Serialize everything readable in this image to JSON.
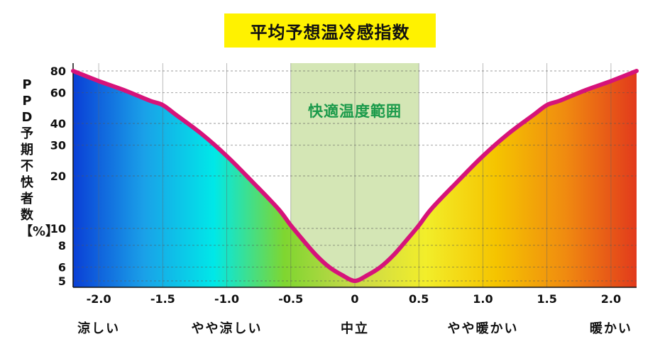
{
  "chart_data": {
    "type": "area",
    "title": "平均予想温冷感指数",
    "ylabel": "PPD予期不快者数【%】",
    "xlabel": "",
    "xlim": [
      -2.2,
      2.2
    ],
    "ylim": [
      5,
      80
    ],
    "y_scale": "log",
    "x_ticks": [
      "-2.0",
      "-1.5",
      "-1.0",
      "-0.5",
      "0",
      "0.5",
      "1.0",
      "1.5",
      "2.0"
    ],
    "y_ticks": [
      "80",
      "60",
      "40",
      "30",
      "20",
      "10",
      "8",
      "6",
      "5"
    ],
    "category_labels": [
      {
        "x": -2.0,
        "text": "涼しい"
      },
      {
        "x": -1.0,
        "text": "やや涼しい"
      },
      {
        "x": 0.0,
        "text": "中立"
      },
      {
        "x": 1.0,
        "text": "やや暖かい"
      },
      {
        "x": 2.0,
        "text": "暖かい"
      }
    ],
    "comfort_band": {
      "x_range": [
        -0.5,
        0.5
      ],
      "label": "快適温度範囲",
      "color": "#d4e6b5",
      "label_color": "#1a9a4a"
    },
    "curve": {
      "color": "#d6137a",
      "x": [
        -2.2,
        -2.0,
        -1.8,
        -1.6,
        -1.5,
        -1.4,
        -1.2,
        -1.0,
        -0.8,
        -0.6,
        -0.5,
        -0.4,
        -0.3,
        -0.2,
        -0.1,
        0.0,
        0.1,
        0.2,
        0.3,
        0.4,
        0.5,
        0.6,
        0.8,
        1.0,
        1.2,
        1.4,
        1.5,
        1.6,
        1.8,
        2.0,
        2.2
      ],
      "y": [
        80,
        70,
        62,
        54,
        51,
        45,
        35,
        26,
        18.5,
        13,
        10.4,
        8.5,
        7.0,
        6.0,
        5.4,
        5,
        5.4,
        6.0,
        7.0,
        8.5,
        10.4,
        13,
        18.5,
        26,
        35,
        45,
        51,
        54,
        62,
        70,
        80
      ]
    },
    "gradient_colors": [
      "#0a3fd6",
      "#1aa0e8",
      "#00e8e8",
      "#7fd630",
      "#c8d84a",
      "#f2ee2a",
      "#f5c400",
      "#f08a10",
      "#e23a1c"
    ],
    "grid": true
  }
}
